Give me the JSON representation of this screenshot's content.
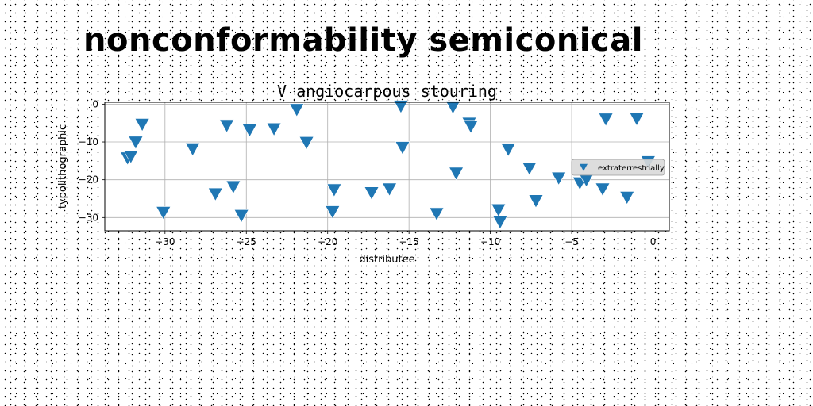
{
  "heading": "nonconformability semiconical",
  "chart_data": {
    "type": "scatter",
    "title": "V angiocarpous stouring",
    "xlabel": "distributee",
    "ylabel": "typolithographic",
    "xlim": [
      -33.7,
      1.0
    ],
    "ylim": [
      -33.5,
      0.5
    ],
    "xticks": [
      -30,
      -25,
      -20,
      -15,
      -10,
      -5,
      0
    ],
    "xtick_labels": [
      "−30",
      "−25",
      "−20",
      "−15",
      "−10",
      "−5",
      "0"
    ],
    "yticks": [
      0,
      -10,
      -20,
      -30
    ],
    "ytick_labels": [
      "0",
      "−10",
      "−20",
      "−30"
    ],
    "grid": true,
    "legend_position": "center-right",
    "marker": "triangle-down",
    "color": "#1f77b4",
    "series": [
      {
        "name": "extraterrestrially",
        "x": [
          -32.3,
          -32.1,
          -31.8,
          -31.4,
          -30.1,
          -28.3,
          -26.9,
          -26.2,
          -25.8,
          -25.3,
          -24.8,
          -23.3,
          -21.9,
          -21.3,
          -19.7,
          -19.6,
          -17.3,
          -16.2,
          -15.5,
          -15.4,
          -13.3,
          -12.3,
          -12.1,
          -11.3,
          -11.2,
          -9.5,
          -9.4,
          -8.9,
          -7.6,
          -7.2,
          -5.8,
          -4.5,
          -4.1,
          -3.1,
          -2.9,
          -1.6,
          -1.0,
          -0.3
        ],
        "y": [
          -14.3,
          -13.9,
          -10.1,
          -5.4,
          -28.7,
          -11.9,
          -23.8,
          -5.7,
          -21.9,
          -29.5,
          -6.9,
          -6.6,
          -1.5,
          -10.2,
          -28.5,
          -22.7,
          -23.5,
          -22.5,
          -0.6,
          -11.5,
          -29.0,
          -0.8,
          -18.3,
          -5.1,
          -5.9,
          -28.0,
          -31.2,
          -12.0,
          -17.0,
          -25.6,
          -19.6,
          -20.9,
          -20.1,
          -22.5,
          -4.0,
          -24.7,
          -3.9,
          -15.3
        ]
      }
    ]
  }
}
